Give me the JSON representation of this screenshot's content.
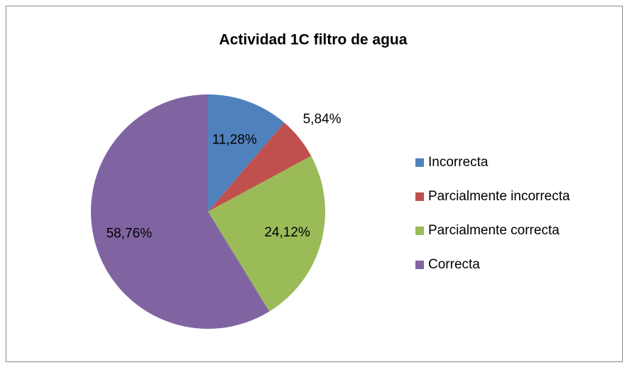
{
  "chart_data": {
    "type": "pie",
    "title": "Actividad 1C filtro de agua",
    "categories": [
      "Incorrecta",
      "Parcialmente incorrecta",
      "Parcialmente correcta",
      "Correcta"
    ],
    "values": [
      11.28,
      5.84,
      24.12,
      58.76
    ],
    "value_labels": [
      "11,28%",
      "5,84%",
      "24,12%",
      "58,76%"
    ],
    "colors": [
      "#4f81bd",
      "#c0504d",
      "#9bbb59",
      "#8064a2"
    ],
    "legend": "right"
  }
}
